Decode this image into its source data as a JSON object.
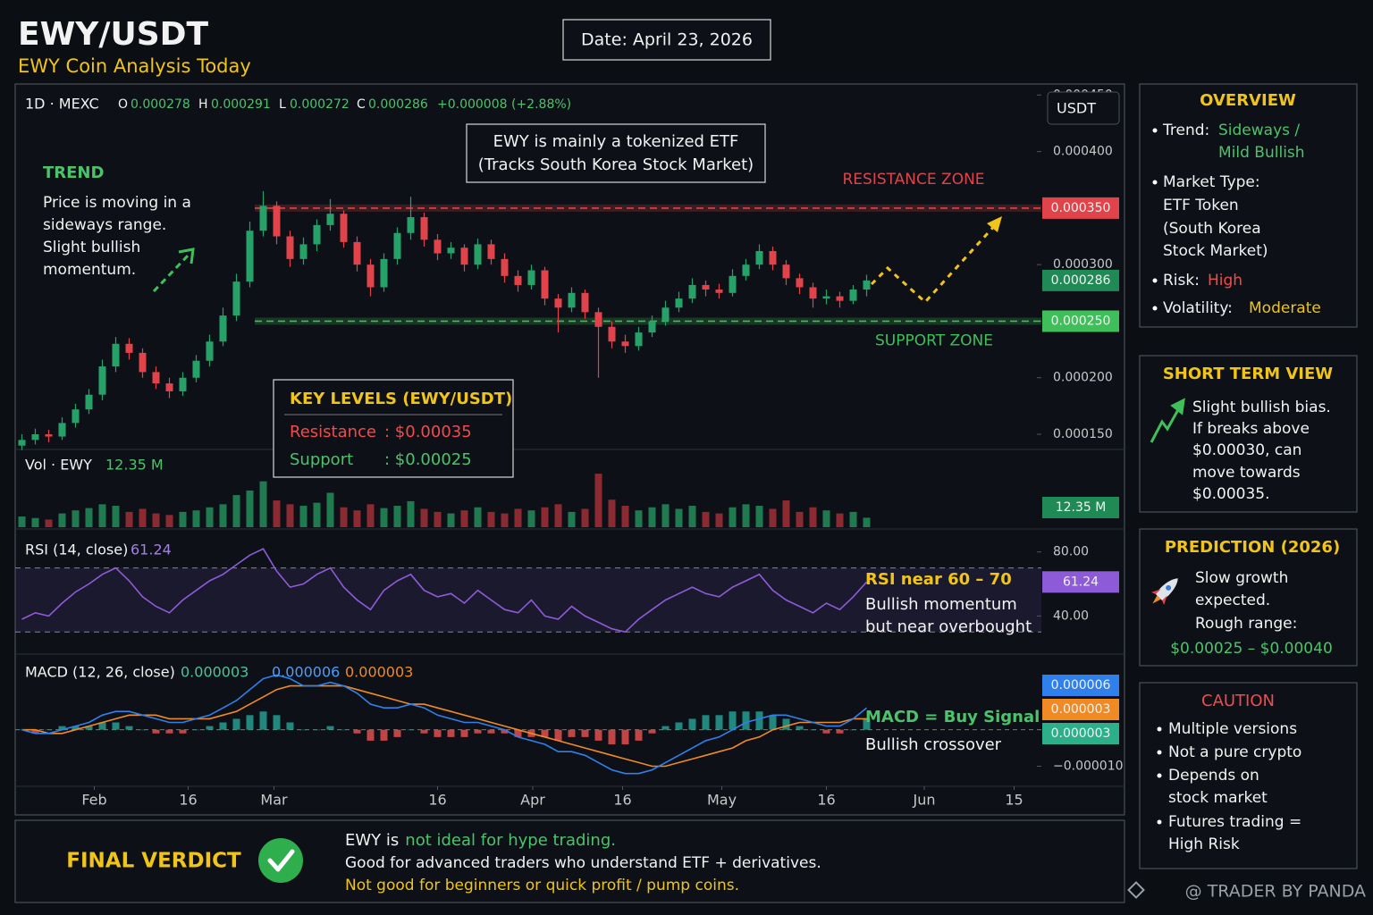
{
  "header": {
    "title": "EWY/USDT",
    "subtitle": "EWY Coin Analysis Today",
    "date": "Date: April 23, 2026"
  },
  "toolbar": {
    "interval": "1D · MEXC",
    "open_label": "O",
    "high_label": "H",
    "low_label": "L",
    "close_label": "C",
    "change": "+0.000008 (+2.88%)",
    "currency": "USDT"
  },
  "chart_data": [
    {
      "type": "candlestick",
      "up_color": "#26a269",
      "down_color": "#e0444a",
      "xlim": [
        -0.5,
        75.7
      ],
      "ylim": [
        0.000135,
        0.000455
      ],
      "yticks": [
        {
          "value": 0.00015,
          "label": "0.000150"
        },
        {
          "value": 0.0002,
          "label": "0.000200"
        },
        {
          "value": 0.00025,
          "label": "0.000250"
        },
        {
          "value": 0.0003,
          "label": "0.000300"
        },
        {
          "value": 0.0004,
          "label": "0.000400"
        },
        {
          "value": 0.00045,
          "label": "0.000450"
        }
      ],
      "xticks": [
        {
          "value": 5.4,
          "label": "Feb"
        },
        {
          "value": 12.4,
          "label": "16"
        },
        {
          "value": 18.8,
          "label": "Mar"
        },
        {
          "value": 31,
          "label": "16"
        },
        {
          "value": 38.1,
          "label": "Apr"
        },
        {
          "value": 44.8,
          "label": "16"
        },
        {
          "value": 52.2,
          "label": "May"
        },
        {
          "value": 60,
          "label": "16"
        },
        {
          "value": 67.3,
          "label": "Jun"
        },
        {
          "value": 74,
          "label": "15"
        }
      ],
      "levels": [
        {
          "name": "RESISTANCE ZONE",
          "value": 0.00035,
          "label": "0.000350",
          "color": "#e0444a"
        },
        {
          "name": "SUPPORT ZONE",
          "value": 0.00025,
          "label": "0.000250",
          "color": "#3fbf5a"
        }
      ],
      "last_color": "#1f8a55",
      "candles": [
        [
          0.00014,
          0.00015,
          0.000136,
          0.000145
        ],
        [
          0.000145,
          0.000155,
          0.000141,
          0.00015
        ],
        [
          0.00015,
          0.000154,
          0.000143,
          0.000148
        ],
        [
          0.000148,
          0.000165,
          0.000145,
          0.00016
        ],
        [
          0.00016,
          0.000177,
          0.000156,
          0.000172
        ],
        [
          0.000172,
          0.00019,
          0.000168,
          0.000185
        ],
        [
          0.000185,
          0.000216,
          0.00018,
          0.00021
        ],
        [
          0.00021,
          0.000236,
          0.000205,
          0.00023
        ],
        [
          0.00023,
          0.000235,
          0.000216,
          0.000222
        ],
        [
          0.000222,
          0.000226,
          0.0002,
          0.000205
        ],
        [
          0.000205,
          0.00021,
          0.00019,
          0.000195
        ],
        [
          0.000195,
          0.0002,
          0.000182,
          0.000188
        ],
        [
          0.000188,
          0.000205,
          0.000184,
          0.0002
        ],
        [
          0.0002,
          0.00022,
          0.000196,
          0.000215
        ],
        [
          0.000215,
          0.000238,
          0.00021,
          0.000232
        ],
        [
          0.000232,
          0.000262,
          0.000228,
          0.000255
        ],
        [
          0.000255,
          0.000292,
          0.00025,
          0.000285
        ],
        [
          0.000285,
          0.000338,
          0.00028,
          0.00033
        ],
        [
          0.00033,
          0.000365,
          0.000325,
          0.000352
        ],
        [
          0.000352,
          0.000356,
          0.000318,
          0.000325
        ],
        [
          0.000325,
          0.00033,
          0.000298,
          0.000305
        ],
        [
          0.000305,
          0.000324,
          0.0003,
          0.000318
        ],
        [
          0.000318,
          0.00034,
          0.000312,
          0.000335
        ],
        [
          0.000335,
          0.000358,
          0.00033,
          0.000345
        ],
        [
          0.000345,
          0.000348,
          0.000315,
          0.00032
        ],
        [
          0.00032,
          0.000325,
          0.000294,
          0.0003
        ],
        [
          0.0003,
          0.000305,
          0.000272,
          0.00028
        ],
        [
          0.00028,
          0.00031,
          0.000276,
          0.000305
        ],
        [
          0.000305,
          0.000333,
          0.0003,
          0.000328
        ],
        [
          0.000328,
          0.00036,
          0.000322,
          0.000342
        ],
        [
          0.000342,
          0.000346,
          0.000316,
          0.000322
        ],
        [
          0.000322,
          0.000327,
          0.000304,
          0.00031
        ],
        [
          0.00031,
          0.00032,
          0.000305,
          0.000315
        ],
        [
          0.000315,
          0.000318,
          0.000294,
          0.0003
        ],
        [
          0.0003,
          0.000323,
          0.000296,
          0.000318
        ],
        [
          0.000318,
          0.000322,
          0.0003,
          0.000305
        ],
        [
          0.000305,
          0.00031,
          0.000284,
          0.00029
        ],
        [
          0.00029,
          0.000295,
          0.000276,
          0.000282
        ],
        [
          0.000282,
          0.0003,
          0.000278,
          0.000295
        ],
        [
          0.000295,
          0.000298,
          0.000264,
          0.00027
        ],
        [
          0.00027,
          0.000274,
          0.00024,
          0.000262
        ],
        [
          0.000262,
          0.00028,
          0.000258,
          0.000275
        ],
        [
          0.000275,
          0.000278,
          0.000252,
          0.000258
        ],
        [
          0.000258,
          0.000262,
          0.0002,
          0.000245
        ],
        [
          0.000245,
          0.00025,
          0.000226,
          0.000232
        ],
        [
          0.000232,
          0.000238,
          0.000222,
          0.000228
        ],
        [
          0.000228,
          0.000245,
          0.000224,
          0.00024
        ],
        [
          0.00024,
          0.000255,
          0.000236,
          0.00025
        ],
        [
          0.00025,
          0.000268,
          0.000246,
          0.000262
        ],
        [
          0.000262,
          0.000276,
          0.000258,
          0.00027
        ],
        [
          0.00027,
          0.000288,
          0.000266,
          0.000282
        ],
        [
          0.000282,
          0.000286,
          0.000272,
          0.000278
        ],
        [
          0.000278,
          0.000283,
          0.00027,
          0.000275
        ],
        [
          0.000275,
          0.000296,
          0.000272,
          0.00029
        ],
        [
          0.00029,
          0.000305,
          0.000286,
          0.0003
        ],
        [
          0.0003,
          0.000318,
          0.000296,
          0.000312
        ],
        [
          0.000312,
          0.000316,
          0.000295,
          0.0003
        ],
        [
          0.0003,
          0.000304,
          0.000282,
          0.000288
        ],
        [
          0.000288,
          0.000292,
          0.000274,
          0.00028
        ],
        [
          0.00028,
          0.000284,
          0.000262,
          0.00027
        ],
        [
          0.00027,
          0.000278,
          0.000265,
          0.000272
        ],
        [
          0.000272,
          0.000276,
          0.000262,
          0.000268
        ],
        [
          0.000268,
          0.000282,
          0.000265,
          0.000278
        ],
        [
          0.000278,
          0.000291,
          0.000272,
          0.000286
        ]
      ]
    },
    {
      "type": "bar",
      "name": "Vol · EWY",
      "last_label": "12.35 M",
      "ylim": [
        0,
        90
      ],
      "up_color": "#1f7a4f",
      "down_color": "#8b2a30",
      "badge_color": "#1f8a55",
      "values": [
        14,
        12,
        10,
        18,
        22,
        25,
        30,
        28,
        20,
        24,
        18,
        16,
        20,
        22,
        26,
        30,
        42,
        48,
        60,
        35,
        30,
        28,
        32,
        45,
        26,
        22,
        30,
        25,
        28,
        34,
        24,
        20,
        18,
        22,
        26,
        20,
        18,
        24,
        22,
        26,
        30,
        20,
        24,
        70,
        36,
        28,
        22,
        26,
        30,
        24,
        28,
        20,
        18,
        26,
        30,
        28,
        24,
        35,
        20,
        26,
        22,
        18,
        20,
        12.35
      ]
    },
    {
      "type": "line",
      "name": "RSI (14, close)",
      "color": "#8e5bd8",
      "ylim": [
        19,
        91
      ],
      "bands": [
        30,
        70
      ],
      "yticks": [
        {
          "value": 80,
          "label": "80.00"
        },
        {
          "value": 40,
          "label": "40.00"
        }
      ],
      "values": [
        38,
        42,
        40,
        48,
        55,
        60,
        66,
        70,
        62,
        52,
        46,
        42,
        50,
        56,
        62,
        66,
        72,
        78,
        82,
        68,
        58,
        60,
        66,
        70,
        58,
        50,
        44,
        56,
        62,
        66,
        56,
        52,
        54,
        48,
        56,
        50,
        44,
        42,
        50,
        40,
        38,
        46,
        40,
        36,
        32,
        30,
        38,
        44,
        50,
        54,
        58,
        54,
        52,
        58,
        62,
        66,
        56,
        50,
        46,
        42,
        48,
        44,
        52,
        61.24
      ]
    },
    {
      "type": "macd",
      "name": "MACD (12, 26, close)",
      "ylim": [
        -1.55e-05,
        1.95e-05
      ],
      "yticks": [
        {
          "value": -1e-05,
          "label": "−0.000010"
        }
      ],
      "histogram": {
        "up_color": "#26a69a",
        "down_color": "#ef5350",
        "color": "#2bb08a",
        "values": [
          0,
          -1e-06,
          0,
          1e-06,
          1e-06,
          1e-06,
          2e-06,
          2e-06,
          1e-06,
          0,
          -1e-06,
          -1e-06,
          -1e-06,
          0,
          1e-06,
          2e-06,
          3e-06,
          4e-06,
          5e-06,
          4e-06,
          2e-06,
          0,
          0,
          1e-06,
          0,
          -1e-06,
          -3e-06,
          -3e-06,
          -2e-06,
          0,
          -1e-06,
          -2e-06,
          -2e-06,
          -2e-06,
          -1e-06,
          -1e-06,
          -1e-06,
          -2e-06,
          -2e-06,
          -2e-06,
          -3e-06,
          -2e-06,
          -2e-06,
          -3e-06,
          -4e-06,
          -4e-06,
          -3e-06,
          -1e-06,
          1e-06,
          2e-06,
          3e-06,
          4e-06,
          4e-06,
          5e-06,
          5e-06,
          5e-06,
          4e-06,
          3e-06,
          1e-06,
          0,
          -1e-06,
          -1e-06,
          0,
          3e-06
        ]
      },
      "macd": {
        "color": "#2f80ed",
        "values": [
          0,
          -1e-06,
          -1e-06,
          0,
          1e-06,
          2e-06,
          4e-06,
          5e-06,
          5e-06,
          4e-06,
          3e-06,
          2e-06,
          2e-06,
          3e-06,
          4e-06,
          6e-06,
          8e-06,
          1.1e-05,
          1.4e-05,
          1.5e-05,
          1.4e-05,
          1.2e-05,
          1.2e-05,
          1.3e-05,
          1.2e-05,
          1e-05,
          7e-06,
          6e-06,
          6e-06,
          7e-06,
          6e-06,
          4e-06,
          3e-06,
          2e-06,
          2e-06,
          1e-06,
          0,
          -2e-06,
          -3e-06,
          -4e-06,
          -6e-06,
          -6e-06,
          -7e-06,
          -9e-06,
          -1.1e-05,
          -1.2e-05,
          -1.2e-05,
          -1.1e-05,
          -9e-06,
          -7e-06,
          -5e-06,
          -3e-06,
          -2e-06,
          0,
          2e-06,
          3e-06,
          4e-06,
          4e-06,
          3e-06,
          2e-06,
          1e-06,
          1e-06,
          3e-06,
          6e-06
        ]
      },
      "signal": {
        "color": "#f08a24",
        "values": [
          0,
          0,
          -1e-06,
          -1e-06,
          0,
          1e-06,
          2e-06,
          3e-06,
          4e-06,
          4e-06,
          4e-06,
          3e-06,
          3e-06,
          3e-06,
          3e-06,
          4e-06,
          5e-06,
          7e-06,
          9e-06,
          1.1e-05,
          1.2e-05,
          1.2e-05,
          1.2e-05,
          1.2e-05,
          1.2e-05,
          1.1e-05,
          1e-05,
          9e-06,
          8e-06,
          7e-06,
          7e-06,
          6e-06,
          5e-06,
          4e-06,
          3e-06,
          2e-06,
          1e-06,
          0,
          -1e-06,
          -2e-06,
          -3e-06,
          -4e-06,
          -5e-06,
          -6e-06,
          -7e-06,
          -8e-06,
          -9e-06,
          -1e-05,
          -1e-05,
          -9e-06,
          -8e-06,
          -7e-06,
          -6e-06,
          -5e-06,
          -3e-06,
          -2e-06,
          0,
          1e-06,
          2e-06,
          2e-06,
          2e-06,
          2e-06,
          3e-06,
          3e-06
        ]
      }
    }
  ],
  "annotations": {
    "etf": [
      "EWY is mainly a tokenized ETF",
      "(Tracks South Korea Stock Market)"
    ],
    "trend": {
      "title": "TREND",
      "lines": [
        "Price is moving in a",
        "sideways range.",
        "Slight bullish",
        "momentum."
      ]
    },
    "key_levels": {
      "title": "KEY LEVELS (EWY/USDT)",
      "rows": [
        [
          "Resistance",
          ": $0.00035"
        ],
        [
          "Support",
          ": $0.00025"
        ]
      ]
    },
    "rsi": [
      "RSI near 60 – 70",
      "Bullish momentum",
      "but near overbought"
    ],
    "macd": [
      "MACD = Buy Signal",
      "Bullish crossover"
    ]
  },
  "sidebar": {
    "overview": {
      "title": "OVERVIEW",
      "trend": {
        "label": "Trend:",
        "value": [
          "Sideways /",
          "Mild Bullish"
        ]
      },
      "market_type": {
        "label": "Market Type:",
        "value": [
          "ETF Token",
          "(South Korea",
          "Stock Market)"
        ]
      },
      "risk": {
        "label": "Risk:",
        "value": "High"
      },
      "volatility": {
        "label": "Volatility:",
        "value": "Moderate"
      }
    },
    "short_term": {
      "title": "SHORT TERM VIEW",
      "lines": [
        "Slight bullish bias.",
        "If breaks above",
        "$0.00030, can",
        "move towards",
        "$0.00035."
      ]
    },
    "prediction": {
      "title": "PREDICTION (2026)",
      "lines": [
        "Slow growth",
        "expected.",
        "Rough range:"
      ],
      "range": "$0.00025 – $0.00040"
    },
    "caution": {
      "title": "CAUTION",
      "items": [
        [
          "Multiple versions"
        ],
        [
          "Not a pure crypto"
        ],
        [
          "Depends on",
          "stock market"
        ],
        [
          "Futures trading =",
          "High Risk"
        ]
      ]
    }
  },
  "verdict": {
    "title": "FINAL VERDICT",
    "line1": [
      "EWY is",
      "not ideal for hype trading."
    ],
    "line2": "Good for advanced traders who understand ETF + derivatives.",
    "line3": "Not good for beginners or quick profit / pump coins."
  },
  "watermark": "@ TRADER BY PANDA"
}
